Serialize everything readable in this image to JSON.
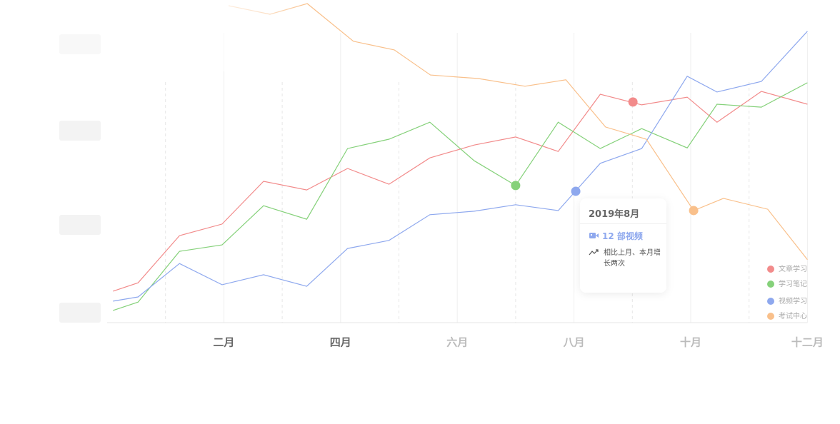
{
  "chart_data": {
    "type": "line",
    "xlim": [
      0,
      12
    ],
    "ylim": [
      0,
      100
    ],
    "xticks": [
      {
        "value": 2,
        "label": "二月"
      },
      {
        "value": 4,
        "label": "四月"
      },
      {
        "value": 6,
        "label": "六月"
      },
      {
        "value": 8,
        "label": "八月"
      },
      {
        "value": 10,
        "label": "十月"
      },
      {
        "value": 12,
        "label": "十二月"
      }
    ],
    "minor_xticks": [
      1,
      3,
      5,
      7,
      9,
      11
    ],
    "legend": "bottom-right",
    "series": [
      {
        "name": "文章学习",
        "color": "#f28b8b",
        "x": [
          0.1,
          0.53,
          1.24,
          1.97,
          2.68,
          3.42,
          4.12,
          4.83,
          5.53,
          6.29,
          7.0,
          7.73,
          8.45,
          9.16,
          9.94,
          10.45,
          11.21,
          12.0
        ],
        "values": [
          9.8,
          12.4,
          27.1,
          30.7,
          44,
          41.3,
          48,
          43.1,
          51.3,
          55.3,
          57.8,
          53.3,
          71.1,
          67.8,
          70.2,
          62.4,
          72,
          68
        ],
        "highlight": {
          "x": 9.01,
          "y": 68.7
        }
      },
      {
        "name": "学习笔记",
        "color": "#85d17a",
        "x": [
          0.1,
          0.53,
          1.24,
          1.97,
          2.68,
          3.42,
          4.12,
          4.83,
          5.53,
          6.29,
          7.0,
          7.73,
          8.45,
          9.16,
          9.94,
          10.45,
          11.21,
          12.0
        ],
        "values": [
          3.8,
          6.4,
          22.2,
          24.2,
          36.4,
          32.2,
          54.2,
          57.1,
          62.4,
          50.4,
          42.7,
          62.4,
          54.2,
          60.4,
          54.4,
          68,
          67.1,
          74.7
        ],
        "highlight": {
          "x": 7.0,
          "y": 42.7
        }
      },
      {
        "name": "视频学习",
        "color": "#8ea8ee",
        "x": [
          0.1,
          0.53,
          1.24,
          1.97,
          2.68,
          3.42,
          4.12,
          4.83,
          5.53,
          6.29,
          7.0,
          7.73,
          8.45,
          9.16,
          9.94,
          10.45,
          11.21,
          12.0
        ],
        "values": [
          6.7,
          8,
          18.4,
          11.8,
          14.9,
          11.3,
          23.1,
          25.6,
          33.6,
          34.7,
          36.7,
          34.9,
          49.6,
          54.2,
          76.7,
          71.8,
          75.1,
          90.7
        ],
        "highlight": {
          "x": 8.03,
          "y": 40.9
        }
      },
      {
        "name": "考试中心",
        "color": "#f9c08b",
        "x": [
          2.08,
          2.79,
          3.43,
          4.22,
          4.92,
          5.54,
          6.36,
          7.16,
          7.86,
          8.54,
          9.24,
          10.05,
          10.56,
          11.32,
          12.0
        ],
        "values": [
          98.7,
          96,
          99.3,
          87.6,
          84.9,
          77.1,
          76,
          73.6,
          75.6,
          60.9,
          57.1,
          34.9,
          38.7,
          35.3,
          19.6
        ],
        "highlight": {
          "x": 10.05,
          "y": 34.9
        }
      }
    ],
    "tooltip": {
      "title": "2019年8月",
      "value": "12 部视频",
      "note": "相比上月、本月增长两次"
    }
  }
}
